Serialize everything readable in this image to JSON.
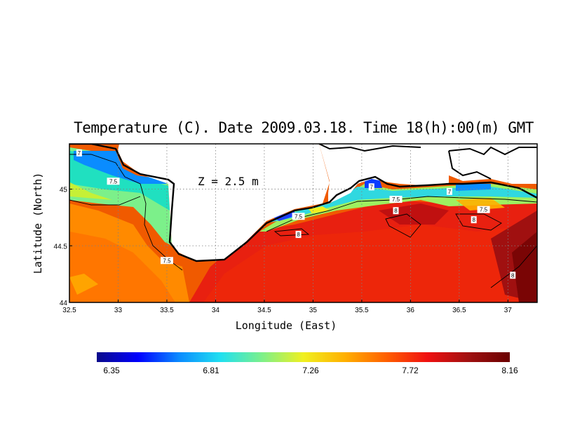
{
  "title": "Temperature (C). Date 2009.03.18. Time 18(h):00(m) GMT",
  "depth_label": "Z = 2.5 m",
  "x_axis": {
    "label": "Longitude (East)",
    "range": [
      32.5,
      37.3
    ],
    "ticks": [
      "32.5",
      "33",
      "33.5",
      "34",
      "34.5",
      "35",
      "35.5",
      "36",
      "36.5",
      "37"
    ]
  },
  "y_axis": {
    "label": "Latitude (North)",
    "range": [
      44.0,
      45.4
    ],
    "ticks": [
      "44",
      "44.5",
      "45"
    ]
  },
  "colorbar": {
    "min": 6.35,
    "max": 8.16,
    "tick_labels": [
      "6.35",
      "6.81",
      "7.26",
      "7.72",
      "8.16"
    ],
    "colors": [
      "#0a0a8a",
      "#0000ff",
      "#0a8cff",
      "#20e0f0",
      "#7cf08a",
      "#f0f020",
      "#ffb000",
      "#ff6000",
      "#f01010",
      "#a01010",
      "#6a0000"
    ]
  },
  "contour_labels": [
    {
      "text": "7",
      "lon": 32.6,
      "lat": 45.32
    },
    {
      "text": "7.5",
      "lon": 32.95,
      "lat": 45.07
    },
    {
      "text": "7.5",
      "lon": 33.5,
      "lat": 44.37
    },
    {
      "text": "7.5",
      "lon": 34.85,
      "lat": 44.76
    },
    {
      "text": "8",
      "lon": 34.85,
      "lat": 44.6
    },
    {
      "text": "7",
      "lon": 35.6,
      "lat": 45.02
    },
    {
      "text": "7.5",
      "lon": 35.85,
      "lat": 44.91
    },
    {
      "text": "8",
      "lon": 35.85,
      "lat": 44.81
    },
    {
      "text": "7",
      "lon": 36.4,
      "lat": 44.98
    },
    {
      "text": "7.5",
      "lon": 36.75,
      "lat": 44.82
    },
    {
      "text": "8",
      "lon": 36.65,
      "lat": 44.73
    },
    {
      "text": "8",
      "lon": 37.05,
      "lat": 44.24
    }
  ]
}
